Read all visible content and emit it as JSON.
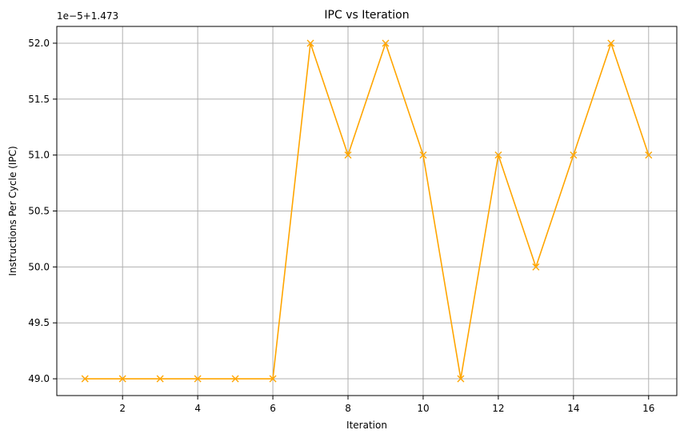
{
  "chart_data": {
    "type": "line",
    "title": "IPC vs Iteration",
    "xlabel": "Iteration",
    "ylabel": "Instructions Per Cycle (IPC)",
    "y_offset_label": "1e−5+1.473",
    "x": [
      1,
      2,
      3,
      4,
      5,
      6,
      7,
      8,
      9,
      10,
      11,
      12,
      13,
      14,
      15,
      16
    ],
    "series": [
      {
        "values": [
          49.0,
          49.0,
          49.0,
          49.0,
          49.0,
          49.0,
          52.0,
          51.0,
          52.0,
          51.0,
          49.0,
          51.0,
          50.0,
          51.0,
          52.0,
          51.0
        ],
        "color": "#ffa500",
        "marker": "x"
      }
    ],
    "xlim": [
      0.25,
      16.75
    ],
    "ylim": [
      48.85,
      52.15
    ],
    "xticks": [
      2,
      4,
      6,
      8,
      10,
      12,
      14,
      16
    ],
    "xtick_labels": [
      "2",
      "4",
      "6",
      "8",
      "10",
      "12",
      "14",
      "16"
    ],
    "yticks": [
      49.0,
      49.5,
      50.0,
      50.5,
      51.0,
      51.5,
      52.0
    ],
    "ytick_labels": [
      "49.0",
      "49.5",
      "50.0",
      "50.5",
      "51.0",
      "51.5",
      "52.0"
    ],
    "grid": true,
    "grid_color": "#b0b0b0"
  }
}
